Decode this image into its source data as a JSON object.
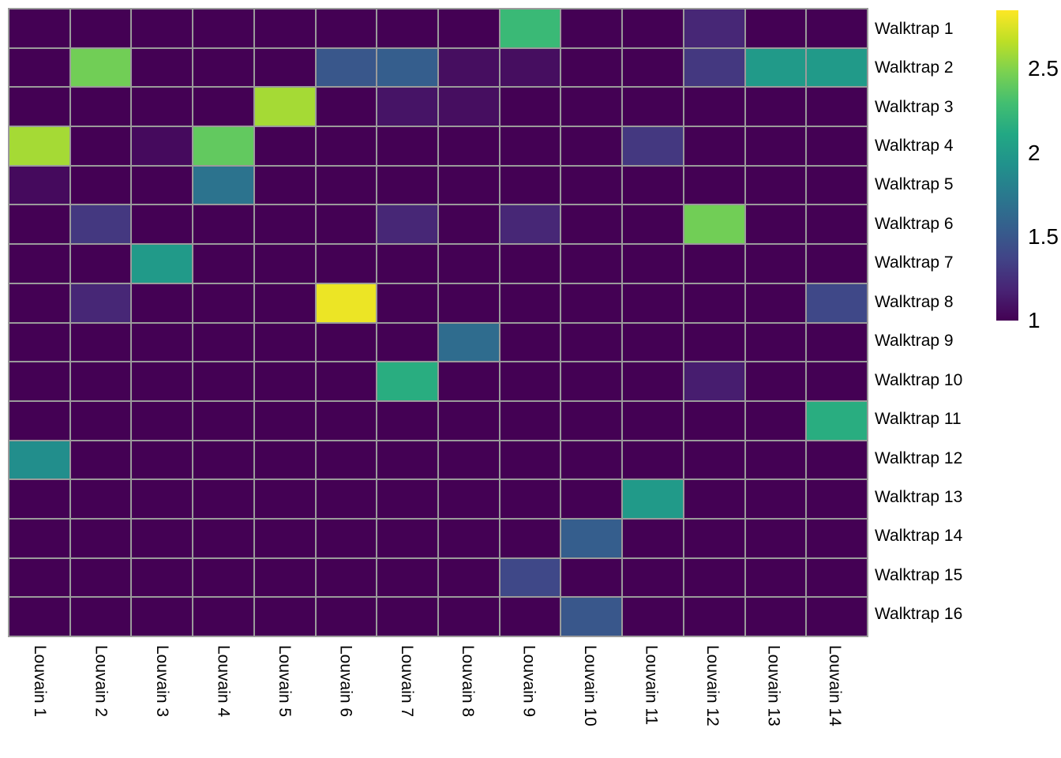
{
  "chart_data": {
    "type": "heatmap",
    "title": "",
    "xlabel": "",
    "ylabel": "",
    "rows": [
      "Walktrap 1",
      "Walktrap 2",
      "Walktrap 3",
      "Walktrap 4",
      "Walktrap 5",
      "Walktrap 6",
      "Walktrap 7",
      "Walktrap 8",
      "Walktrap 9",
      "Walktrap 10",
      "Walktrap 11",
      "Walktrap 12",
      "Walktrap 13",
      "Walktrap 14",
      "Walktrap 15",
      "Walktrap 16"
    ],
    "columns": [
      "Louvain 1",
      "Louvain 2",
      "Louvain 3",
      "Louvain 4",
      "Louvain 5",
      "Louvain 6",
      "Louvain 7",
      "Louvain 8",
      "Louvain 9",
      "Louvain 10",
      "Louvain 11",
      "Louvain 12",
      "Louvain 13",
      "Louvain 14"
    ],
    "values": [
      [
        1,
        1,
        1,
        1,
        1,
        1,
        1,
        1,
        2.25,
        1,
        1,
        1.2,
        1,
        1
      ],
      [
        1,
        2.45,
        1,
        1,
        1,
        1.5,
        1.55,
        1.07,
        1.07,
        1,
        1,
        1.3,
        2,
        2
      ],
      [
        1,
        1,
        1,
        1,
        2.6,
        1,
        1.1,
        1.07,
        1,
        1,
        1,
        1,
        1,
        1
      ],
      [
        2.6,
        1,
        1.05,
        2.4,
        1,
        1,
        1,
        1,
        1,
        1,
        1.3,
        1,
        1,
        1
      ],
      [
        1.05,
        1,
        1,
        1.7,
        1,
        1,
        1,
        1,
        1,
        1,
        1,
        1,
        1,
        1
      ],
      [
        1,
        1.3,
        1,
        1,
        1,
        1,
        1.2,
        1,
        1.2,
        1,
        1,
        2.45,
        1,
        1
      ],
      [
        1,
        1,
        2,
        1,
        1,
        1,
        1,
        1,
        1,
        1,
        1,
        1,
        1,
        1
      ],
      [
        1,
        1.2,
        1,
        1,
        1,
        2.8,
        1,
        1,
        1,
        1,
        1,
        1,
        1,
        1.4
      ],
      [
        1,
        1,
        1,
        1,
        1,
        1,
        1,
        1.65,
        1,
        1,
        1,
        1,
        1,
        1
      ],
      [
        1,
        1,
        1,
        1,
        1,
        1,
        2.15,
        1,
        1,
        1,
        1,
        1.15,
        1,
        1
      ],
      [
        1,
        1,
        1,
        1,
        1,
        1,
        1,
        1,
        1,
        1,
        1,
        1,
        1,
        2.15
      ],
      [
        1.9,
        1,
        1,
        1,
        1,
        1,
        1,
        1,
        1,
        1,
        1,
        1,
        1,
        1
      ],
      [
        1,
        1,
        1,
        1,
        1,
        1,
        1,
        1,
        1,
        1,
        2,
        1,
        1,
        1
      ],
      [
        1,
        1,
        1,
        1,
        1,
        1,
        1,
        1,
        1,
        1.55,
        1,
        1,
        1,
        1
      ],
      [
        1,
        1,
        1,
        1,
        1,
        1,
        1,
        1,
        1.4,
        1,
        1,
        1,
        1,
        1
      ],
      [
        1,
        1,
        1,
        1,
        1,
        1,
        1,
        1,
        1,
        1.5,
        1,
        1,
        1,
        1
      ]
    ],
    "colormap": "viridis",
    "colormap_stops": [
      [
        0.0,
        "#440154"
      ],
      [
        0.1,
        "#482475"
      ],
      [
        0.2,
        "#414487"
      ],
      [
        0.3,
        "#355f8d"
      ],
      [
        0.4,
        "#2a788e"
      ],
      [
        0.5,
        "#21918c"
      ],
      [
        0.6,
        "#22a884"
      ],
      [
        0.7,
        "#42be71"
      ],
      [
        0.8,
        "#7ad151"
      ],
      [
        0.9,
        "#bddf26"
      ],
      [
        1.0,
        "#fde725"
      ]
    ],
    "color_scale": {
      "min": 1,
      "max": 2.85,
      "tick_values": [
        1,
        1.5,
        2,
        2.5
      ],
      "tick_labels": [
        "1",
        "1.5",
        "2",
        "2.5"
      ],
      "legend_position": "right"
    },
    "grid": {
      "on": true,
      "line_color": "#9b9b9b"
    },
    "layout_hints": {
      "row_labels_side": "right",
      "col_labels_rotated": true
    }
  },
  "colors": {
    "background": "#ffffff",
    "grid_line": "#9b9b9b",
    "label_text": "#000000"
  }
}
